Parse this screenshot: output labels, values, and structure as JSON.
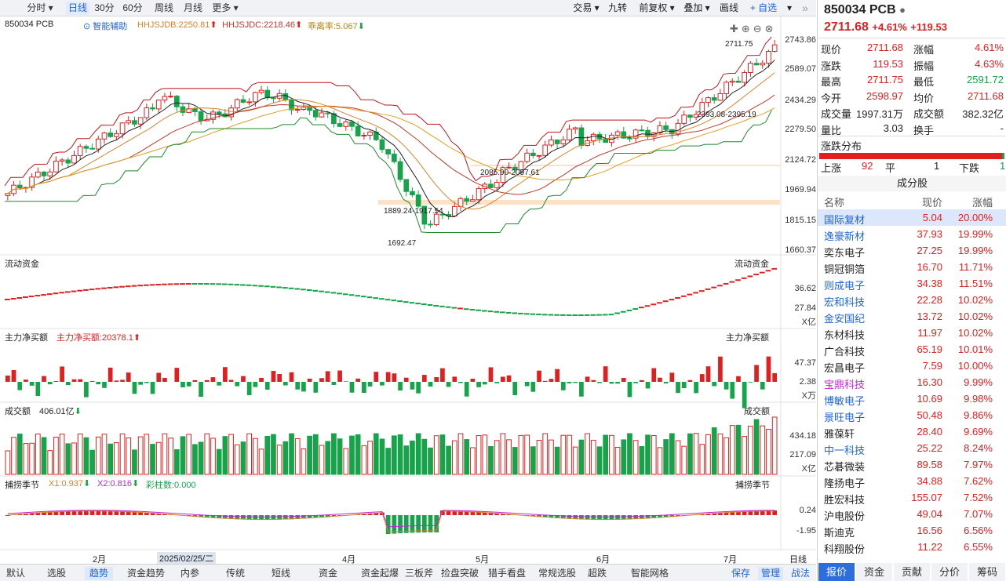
{
  "toolbar": {
    "left": [
      "分时",
      "日线",
      "30分",
      "60分",
      "周线",
      "月线",
      "更多"
    ],
    "right": [
      "交易",
      "九转",
      "前复权",
      "叠加",
      "画线",
      "+ 自选"
    ],
    "collapse": "»"
  },
  "chart": {
    "symbol": "850034 PCB",
    "assist": "智能辅助",
    "ind": [
      "HHJSJDB:2250.81",
      "HHJSJDC:2218.46",
      "乖离率:5.067"
    ],
    "price_axis": [
      "2743.86",
      "2589.07",
      "2434.29",
      "2279.50",
      "2124.72",
      "1969.94",
      "1815.15",
      "1660.37"
    ],
    "ann": {
      "high": "2711.75",
      "a": "2393.08-2395.19",
      "b": "2085.90-2097.61",
      "c": "1889.24-1917.54",
      "low": "1692.47"
    },
    "flow": {
      "title": "流动资金",
      "right": "流动资金",
      "ax": [
        "36.62",
        "27.84"
      ],
      "unit": "X亿"
    },
    "main": {
      "title": "主力净买额",
      "value": "主力净买额:20378.1",
      "right": "主力净买额",
      "ax": [
        "47.37",
        "2.38"
      ],
      "unit": "X万"
    },
    "vol": {
      "title": "成交额",
      "value": "406.01亿",
      "right": "成交额",
      "ax": [
        "434.18",
        "217.09"
      ],
      "unit": "X亿"
    },
    "season": {
      "title": "捕捞季节",
      "x1": "X1:0.937",
      "x2": "X2:0.816",
      "col": "彩柱数:0.000",
      "right": "捕捞季节",
      "ax": [
        "0.24",
        "-1.95"
      ]
    },
    "xaxis": [
      "2月",
      "2025/02/25/二",
      "4月",
      "5月",
      "6月",
      "7月"
    ],
    "period": "日线"
  },
  "quote": {
    "title": "850034 PCB",
    "price": "2711.68",
    "pct": "+4.61%",
    "chg": "+119.53",
    "rows": [
      [
        "现价",
        "2711.68",
        "涨幅",
        "4.61%"
      ],
      [
        "涨跌",
        "119.53",
        "振幅",
        "4.63%"
      ],
      [
        "最高",
        "2711.75",
        "最低",
        "2591.72"
      ],
      [
        "今开",
        "2598.97",
        "均价",
        "2711.68"
      ],
      [
        "成交量",
        "1997.31万",
        "成交额",
        "382.32亿"
      ],
      [
        "量比",
        "3.03",
        "换手",
        "-"
      ]
    ]
  },
  "dist": {
    "title": "涨跌分布",
    "up_label": "上涨",
    "up": "92",
    "flat_label": "平",
    "flat": "1",
    "down_label": "下跌",
    "down": "1"
  },
  "constituents": {
    "title": "成分股",
    "headers": [
      "名称",
      "现价",
      "涨幅"
    ],
    "rows": [
      [
        "国际复材",
        "5.04",
        "20.00%"
      ],
      [
        "逸豪新材",
        "37.93",
        "19.99%"
      ],
      [
        "奕东电子",
        "27.25",
        "19.99%"
      ],
      [
        "铜冠铜箔",
        "16.70",
        "11.71%"
      ],
      [
        "则成电子",
        "34.38",
        "11.51%"
      ],
      [
        "宏和科技",
        "22.28",
        "10.02%"
      ],
      [
        "金安国纪",
        "13.72",
        "10.02%"
      ],
      [
        "东材科技",
        "11.97",
        "10.02%"
      ],
      [
        "广合科技",
        "65.19",
        "10.01%"
      ],
      [
        "宏昌电子",
        "7.59",
        "10.00%"
      ],
      [
        "宝鼎科技",
        "16.30",
        "9.99%"
      ],
      [
        "博敏电子",
        "10.69",
        "9.98%"
      ],
      [
        "景旺电子",
        "50.48",
        "9.86%"
      ],
      [
        "雅葆轩",
        "28.40",
        "9.69%"
      ],
      [
        "中一科技",
        "25.22",
        "8.24%"
      ],
      [
        "芯碁微装",
        "89.58",
        "7.97%"
      ],
      [
        "隆扬电子",
        "34.88",
        "7.62%"
      ],
      [
        "胜宏科技",
        "155.07",
        "7.52%"
      ],
      [
        "沪电股份",
        "49.04",
        "7.07%"
      ],
      [
        "斯迪克",
        "16.56",
        "6.56%"
      ],
      [
        "科翔股份",
        "11.22",
        "6.55%"
      ]
    ]
  },
  "bottom_tabs": [
    "默认",
    "选股",
    "趋势",
    "资金趋势",
    "内参",
    "传统",
    "短线",
    "资金",
    "资金起爆",
    "三板斧",
    "捡盘突破",
    "猎手看盘",
    "常规选股",
    "超跌",
    "智能网格"
  ],
  "bottom_right": [
    "保存",
    "管理",
    "战法"
  ],
  "right_tabs": [
    "报价",
    "资金",
    "贡献",
    "分价",
    "筹码"
  ],
  "colors": {
    "up": "#e02020",
    "down": "#16a34a",
    "accent": "#1e63d8"
  }
}
